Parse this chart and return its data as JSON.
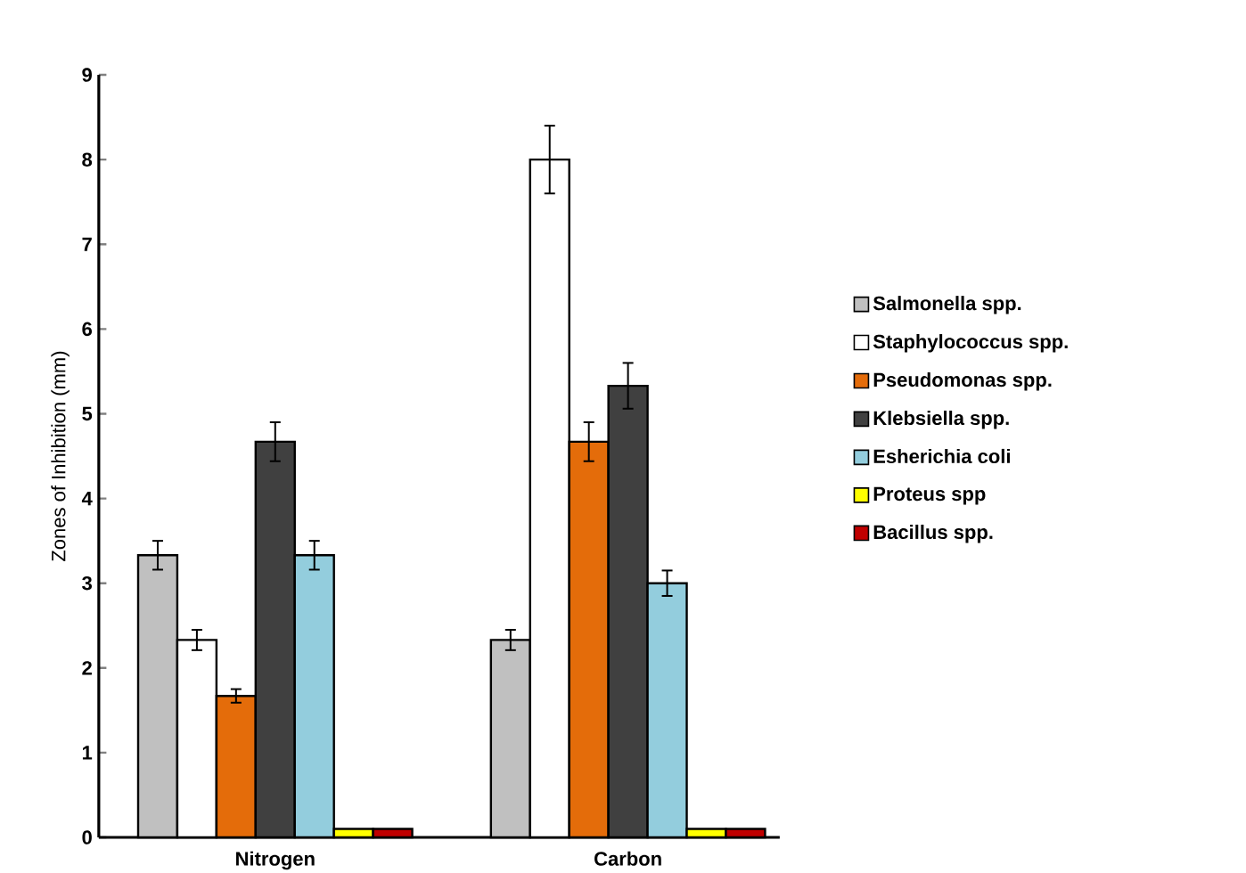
{
  "chart_data": {
    "type": "bar",
    "ylabel": "Zones of Inhibition (mm)",
    "categories": [
      "Nitrogen",
      "Carbon"
    ],
    "series": [
      {
        "name": "Salmonella spp.",
        "color": "#c0c0c0",
        "values": [
          3.33,
          2.33
        ],
        "errors": [
          0.17,
          0.12
        ]
      },
      {
        "name": "Staphylococcus spp.",
        "color": "#ffffff",
        "values": [
          2.33,
          8.0
        ],
        "errors": [
          0.12,
          0.4
        ]
      },
      {
        "name": "Pseudomonas spp.",
        "color": "#e46c0a",
        "values": [
          1.67,
          4.67
        ],
        "errors": [
          0.08,
          0.23
        ]
      },
      {
        "name": "Klebsiella spp.",
        "color": "#404040",
        "values": [
          4.67,
          5.33
        ],
        "errors": [
          0.23,
          0.27
        ]
      },
      {
        "name": "Esherichia coli",
        "color": "#93cddd",
        "values": [
          3.33,
          3.0
        ],
        "errors": [
          0.17,
          0.15
        ]
      },
      {
        "name": "Proteus spp",
        "color": "#ffff00",
        "values": [
          0.1,
          0.1
        ]
      },
      {
        "name": "Bacillus spp.",
        "color": "#c00000",
        "values": [
          0.1,
          0.1
        ]
      }
    ],
    "ylim": [
      0,
      9
    ],
    "yticks": [
      0,
      1,
      2,
      3,
      4,
      5,
      6,
      7,
      8,
      9
    ],
    "grid": false,
    "legend": "right"
  }
}
